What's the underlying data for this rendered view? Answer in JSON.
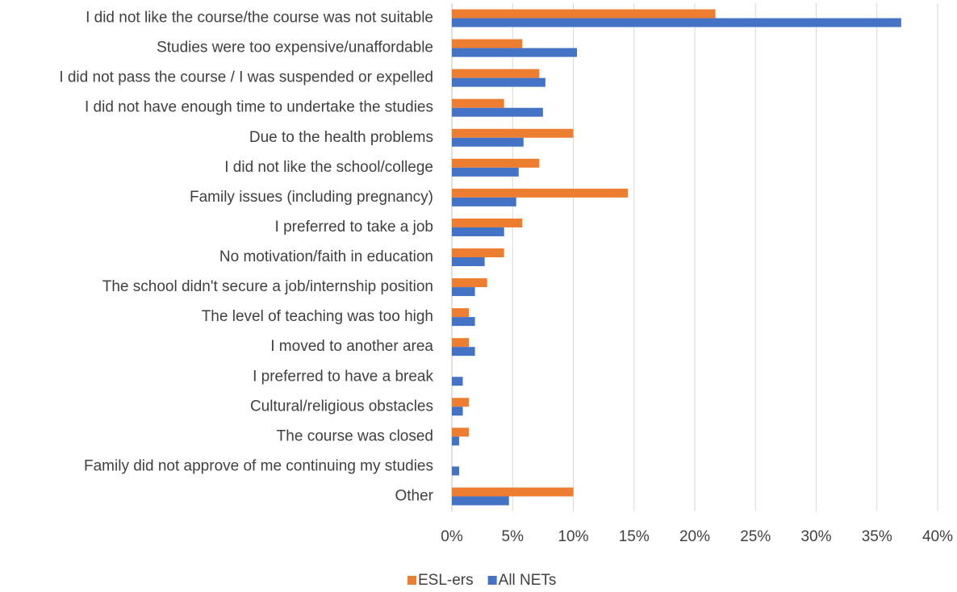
{
  "chart_data": {
    "type": "hbar",
    "categories": [
      "I did not like the course/the course was not suitable",
      "Studies were too expensive/unaffordable",
      "I did not pass the course / I was suspended or expelled",
      "I did not have enough time to undertake the studies",
      "Due to the health problems",
      "I did not like the school/college",
      "Family issues (including pregnancy)",
      "I preferred to take a job",
      "No motivation/faith in education",
      "The school didn't secure a job/internship position",
      "The level of teaching was too high",
      "I moved to another area",
      "I preferred to have a break",
      "Cultural/religious obstacles",
      "The course was closed",
      "Family did not approve of me continuing my studies",
      "Other"
    ],
    "series": [
      {
        "name": "ESL-ers",
        "color": "#ed7d31",
        "values": [
          21.7,
          5.8,
          7.2,
          4.3,
          10.0,
          7.2,
          14.5,
          5.8,
          4.3,
          2.9,
          1.4,
          1.4,
          0,
          1.4,
          1.4,
          0,
          10.0
        ]
      },
      {
        "name": "All NETs",
        "color": "#4472c4",
        "values": [
          37.0,
          10.3,
          7.7,
          7.5,
          5.9,
          5.5,
          5.3,
          4.3,
          2.7,
          1.9,
          1.9,
          1.9,
          0.9,
          0.9,
          0.6,
          0.6,
          4.7
        ]
      }
    ],
    "xlim": [
      0,
      40
    ],
    "xticks": [
      {
        "value": 0,
        "label": "0%"
      },
      {
        "value": 5,
        "label": "5%"
      },
      {
        "value": 10,
        "label": "10%"
      },
      {
        "value": 15,
        "label": "15%"
      },
      {
        "value": 20,
        "label": "20%"
      },
      {
        "value": 25,
        "label": "25%"
      },
      {
        "value": 30,
        "label": "30%"
      },
      {
        "value": 35,
        "label": "35%"
      },
      {
        "value": 40,
        "label": "40%"
      }
    ],
    "grid": true,
    "legend": "bottom"
  }
}
